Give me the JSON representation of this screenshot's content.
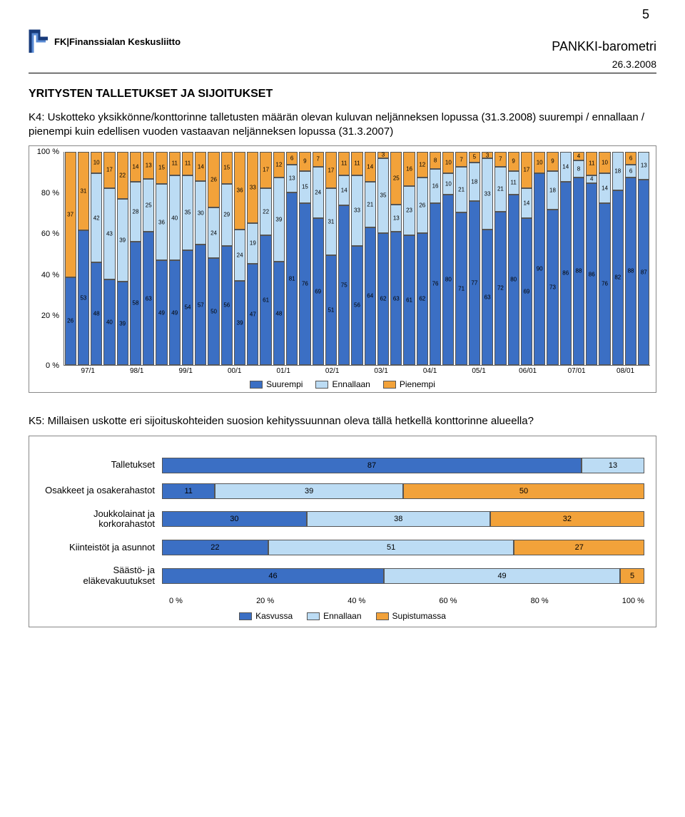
{
  "page_number": "5",
  "header": {
    "org_prefix": "FK",
    "org_name": "Finanssialan Keskusliitto",
    "report_title": "PANKKI-barometri",
    "date": "26.3.2008"
  },
  "section_title": "YRITYSTEN TALLETUKSET JA SIJOITUKSET",
  "q4_text": "K4: Uskotteko yksikkönne/konttorinne talletusten määrän olevan kuluvan neljänneksen lopussa (31.3.2008) suurempi / ennallaan / pienempi kuin edellisen vuoden vastaavan neljänneksen lopussa (31.3.2007)",
  "chart1": {
    "type": "stacked-bar-100",
    "y_ticks": [
      "100 %",
      "80 %",
      "60 %",
      "40 %",
      "20 %",
      "0 %"
    ],
    "colors": {
      "suurempi": "#3b6fc4",
      "ennallaan": "#bcdcf4",
      "pienempi": "#f2a23a"
    },
    "legend": [
      "Suurempi",
      "Ennallaan",
      "Pienempi"
    ],
    "x_major": [
      "97/1",
      "98/1",
      "99/1",
      "00/1",
      "01/1",
      "02/1",
      "03/1",
      "04/1",
      "05/1",
      "06/01",
      "07/01",
      "08/01"
    ],
    "bars": [
      {
        "p": 37,
        "e": 0,
        "s": 26,
        "extra": 38
      },
      {
        "p": 31,
        "e": 0,
        "s": 53,
        "extra": 16
      },
      {
        "p": 10,
        "e": 42,
        "s": 48
      },
      {
        "p": 17,
        "e": 43,
        "s": 40
      },
      {
        "p": 22,
        "e": 39,
        "s": 39
      },
      {
        "p": 14,
        "e": 28,
        "s": 58
      },
      {
        "p": 13,
        "e": 25,
        "s": 63,
        "mid": 0
      },
      {
        "p": 15,
        "e": 36,
        "s": 49
      },
      {
        "p": 11,
        "e": 40,
        "s": 49
      },
      {
        "p": 11,
        "e": 35,
        "s": 54
      },
      {
        "p": 14,
        "e": 30,
        "s": 57,
        "sub": 0
      },
      {
        "p": 26,
        "e": 24,
        "s": 50
      },
      {
        "p": 15,
        "e": 29,
        "s": 56
      },
      {
        "p": 36,
        "e": 24,
        "s": 39,
        "sub": 0
      },
      {
        "p": 33,
        "e": 19,
        "s": 47,
        "sub": 0
      },
      {
        "p": 17,
        "e": 22,
        "s": 61
      },
      {
        "p": 12,
        "e": 39,
        "s": 48,
        "sub": 0
      },
      {
        "p": 6,
        "e": 13,
        "s": 81
      },
      {
        "p": 9,
        "e": 15,
        "s": 76
      },
      {
        "p": 7,
        "e": 24,
        "s": 69
      },
      {
        "p": 17,
        "e": 31,
        "s": 51,
        "sub": 0
      },
      {
        "p": 11,
        "e": 14,
        "s": 75
      },
      {
        "p": 11,
        "e": 33,
        "s": 56
      },
      {
        "p": 14,
        "e": 21,
        "s": 64,
        "sub": 0
      },
      {
        "p": 3,
        "e": 35,
        "s": 62
      },
      {
        "p": 25,
        "e": 13,
        "s": 63,
        "mid": 0
      },
      {
        "p": 16,
        "e": 23,
        "s": 61
      },
      {
        "p": 12,
        "e": 26,
        "s": 62
      },
      {
        "p": 8,
        "e": 16,
        "s": 76
      },
      {
        "p": 10,
        "e": 10,
        "s": 80
      },
      {
        "p": 7,
        "e": 21,
        "s": 71,
        "sub": 0
      },
      {
        "p": 5,
        "e": 18,
        "s": 77
      },
      {
        "p": 3,
        "e": 33,
        "s": 63,
        "sub": 0
      },
      {
        "p": 7,
        "e": 21,
        "s": 72
      },
      {
        "p": 9,
        "e": 11,
        "s": 80
      },
      {
        "p": 17,
        "e": 14,
        "s": 69
      },
      {
        "p": 10,
        "e": 0,
        "s": 90
      },
      {
        "p": 9,
        "e": 18,
        "s": 73
      },
      {
        "p": 0,
        "e": 14,
        "s": 86
      },
      {
        "p": 4,
        "e": 8,
        "s": 88
      },
      {
        "p": 11,
        "e": 4,
        "s": 86,
        "mid": 0
      },
      {
        "p": 10,
        "e": 14,
        "s": 76
      },
      {
        "p": 0,
        "e": 18,
        "s": 82
      },
      {
        "p": 6,
        "e": 6,
        "s": 88
      },
      {
        "p": 0,
        "e": 13,
        "s": 87
      }
    ]
  },
  "q5_text": "K5: Millaisen uskotte eri sijoituskohteiden suosion kehityssuunnan oleva tällä hetkellä konttorinne alueella?",
  "chart2": {
    "type": "stacked-hbar-100",
    "colors": {
      "kasvussa": "#3b6fc4",
      "ennallaan": "#bcdcf4",
      "supistumassa": "#f2a23a"
    },
    "x_ticks": [
      "0 %",
      "20 %",
      "40 %",
      "60 %",
      "80 %",
      "100 %"
    ],
    "legend": [
      "Kasvussa",
      "Ennallaan",
      "Supistumassa"
    ],
    "rows": [
      {
        "label": "Talletukset",
        "k": 87,
        "e": 13,
        "s": 0
      },
      {
        "label": "Osakkeet ja osakerahastot",
        "k": 11,
        "e": 39,
        "s": 50
      },
      {
        "label": "Joukkolainat ja korkorahastot",
        "k": 30,
        "e": 38,
        "s": 32
      },
      {
        "label": "Kiinteistöt ja asunnot",
        "k": 22,
        "e": 51,
        "s": 27
      },
      {
        "label": "Säästö- ja eläkevakuutukset",
        "k": 46,
        "e": 49,
        "s": 5
      }
    ]
  }
}
